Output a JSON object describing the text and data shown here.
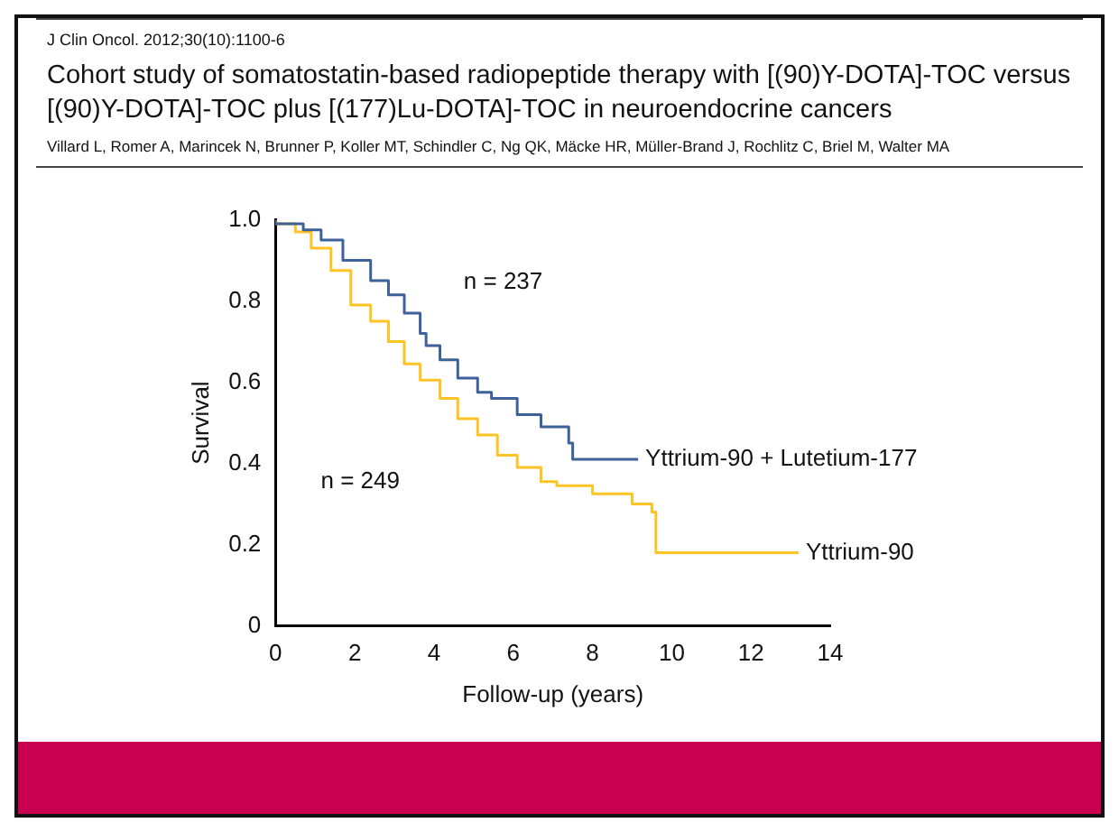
{
  "chart_data": {
    "type": "step",
    "title": "Cohort study of somatostatin-based radiopeptide therapy with [(90)Y-DOTA]-TOC versus [(90)Y-DOTA]-TOC plus [(177)Lu-DOTA]-TOC in neuroendocrine cancers",
    "subtitle": "Villard L, Romer A, Marincek N, Brunner P, Koller MT, Schindler C, Ng QK, Mäcke HR, Müller-Brand J, Rochlitz C, Briel M, Walter MA",
    "xlabel": "Follow-up (years)",
    "ylabel": "Survival",
    "annotations": [
      "J Clin Oncol. 2012;30(10):1100-6",
      "n = 237",
      "n = 249"
    ],
    "series": [
      {
        "name": "Yttrium-90 + Lutetium-177",
        "color": "#3d6199",
        "x": [
          0,
          0.7,
          1.15,
          1.7,
          2.4,
          2.85,
          3.25,
          3.65,
          3.8,
          4.15,
          4.6,
          5.1,
          5.45,
          6.1,
          6.7,
          7.4,
          7.5,
          7.85,
          9.15
        ],
        "values": [
          1.0,
          0.99,
          0.975,
          0.95,
          0.9,
          0.85,
          0.815,
          0.77,
          0.72,
          0.69,
          0.655,
          0.61,
          0.575,
          0.56,
          0.52,
          0.49,
          0.45,
          0.41,
          0.41
        ]
      },
      {
        "name": "Yttrium-90",
        "color": "#ffc423",
        "x": [
          0,
          0.5,
          0.9,
          1.4,
          1.9,
          2.4,
          2.85,
          3.25,
          3.65,
          4.15,
          4.6,
          5.1,
          5.6,
          6.1,
          6.7,
          7.1,
          8.0,
          9.0,
          9.5,
          9.6,
          11.75,
          13.2
        ],
        "values": [
          1.0,
          0.99,
          0.97,
          0.93,
          0.875,
          0.79,
          0.75,
          0.7,
          0.645,
          0.605,
          0.56,
          0.51,
          0.47,
          0.42,
          0.39,
          0.355,
          0.345,
          0.325,
          0.3,
          0.28,
          0.18,
          0.18
        ]
      }
    ],
    "xlim": [
      0,
      14
    ],
    "xticks": [
      0,
      2,
      4,
      6,
      8,
      10,
      12,
      14
    ],
    "ylim": [
      0,
      1
    ],
    "yticks": [
      0,
      {
        "value": 0.2,
        "label": "0.2"
      },
      {
        "value": 0.4,
        "label": "0.4"
      },
      {
        "value": 0.6,
        "label": "0.6"
      },
      {
        "value": 0.8,
        "label": "0.8"
      },
      {
        "value": 1,
        "label": "1.0"
      }
    ],
    "grid": false,
    "legend": false,
    "marker": "none",
    "line_style": "solid"
  }
}
